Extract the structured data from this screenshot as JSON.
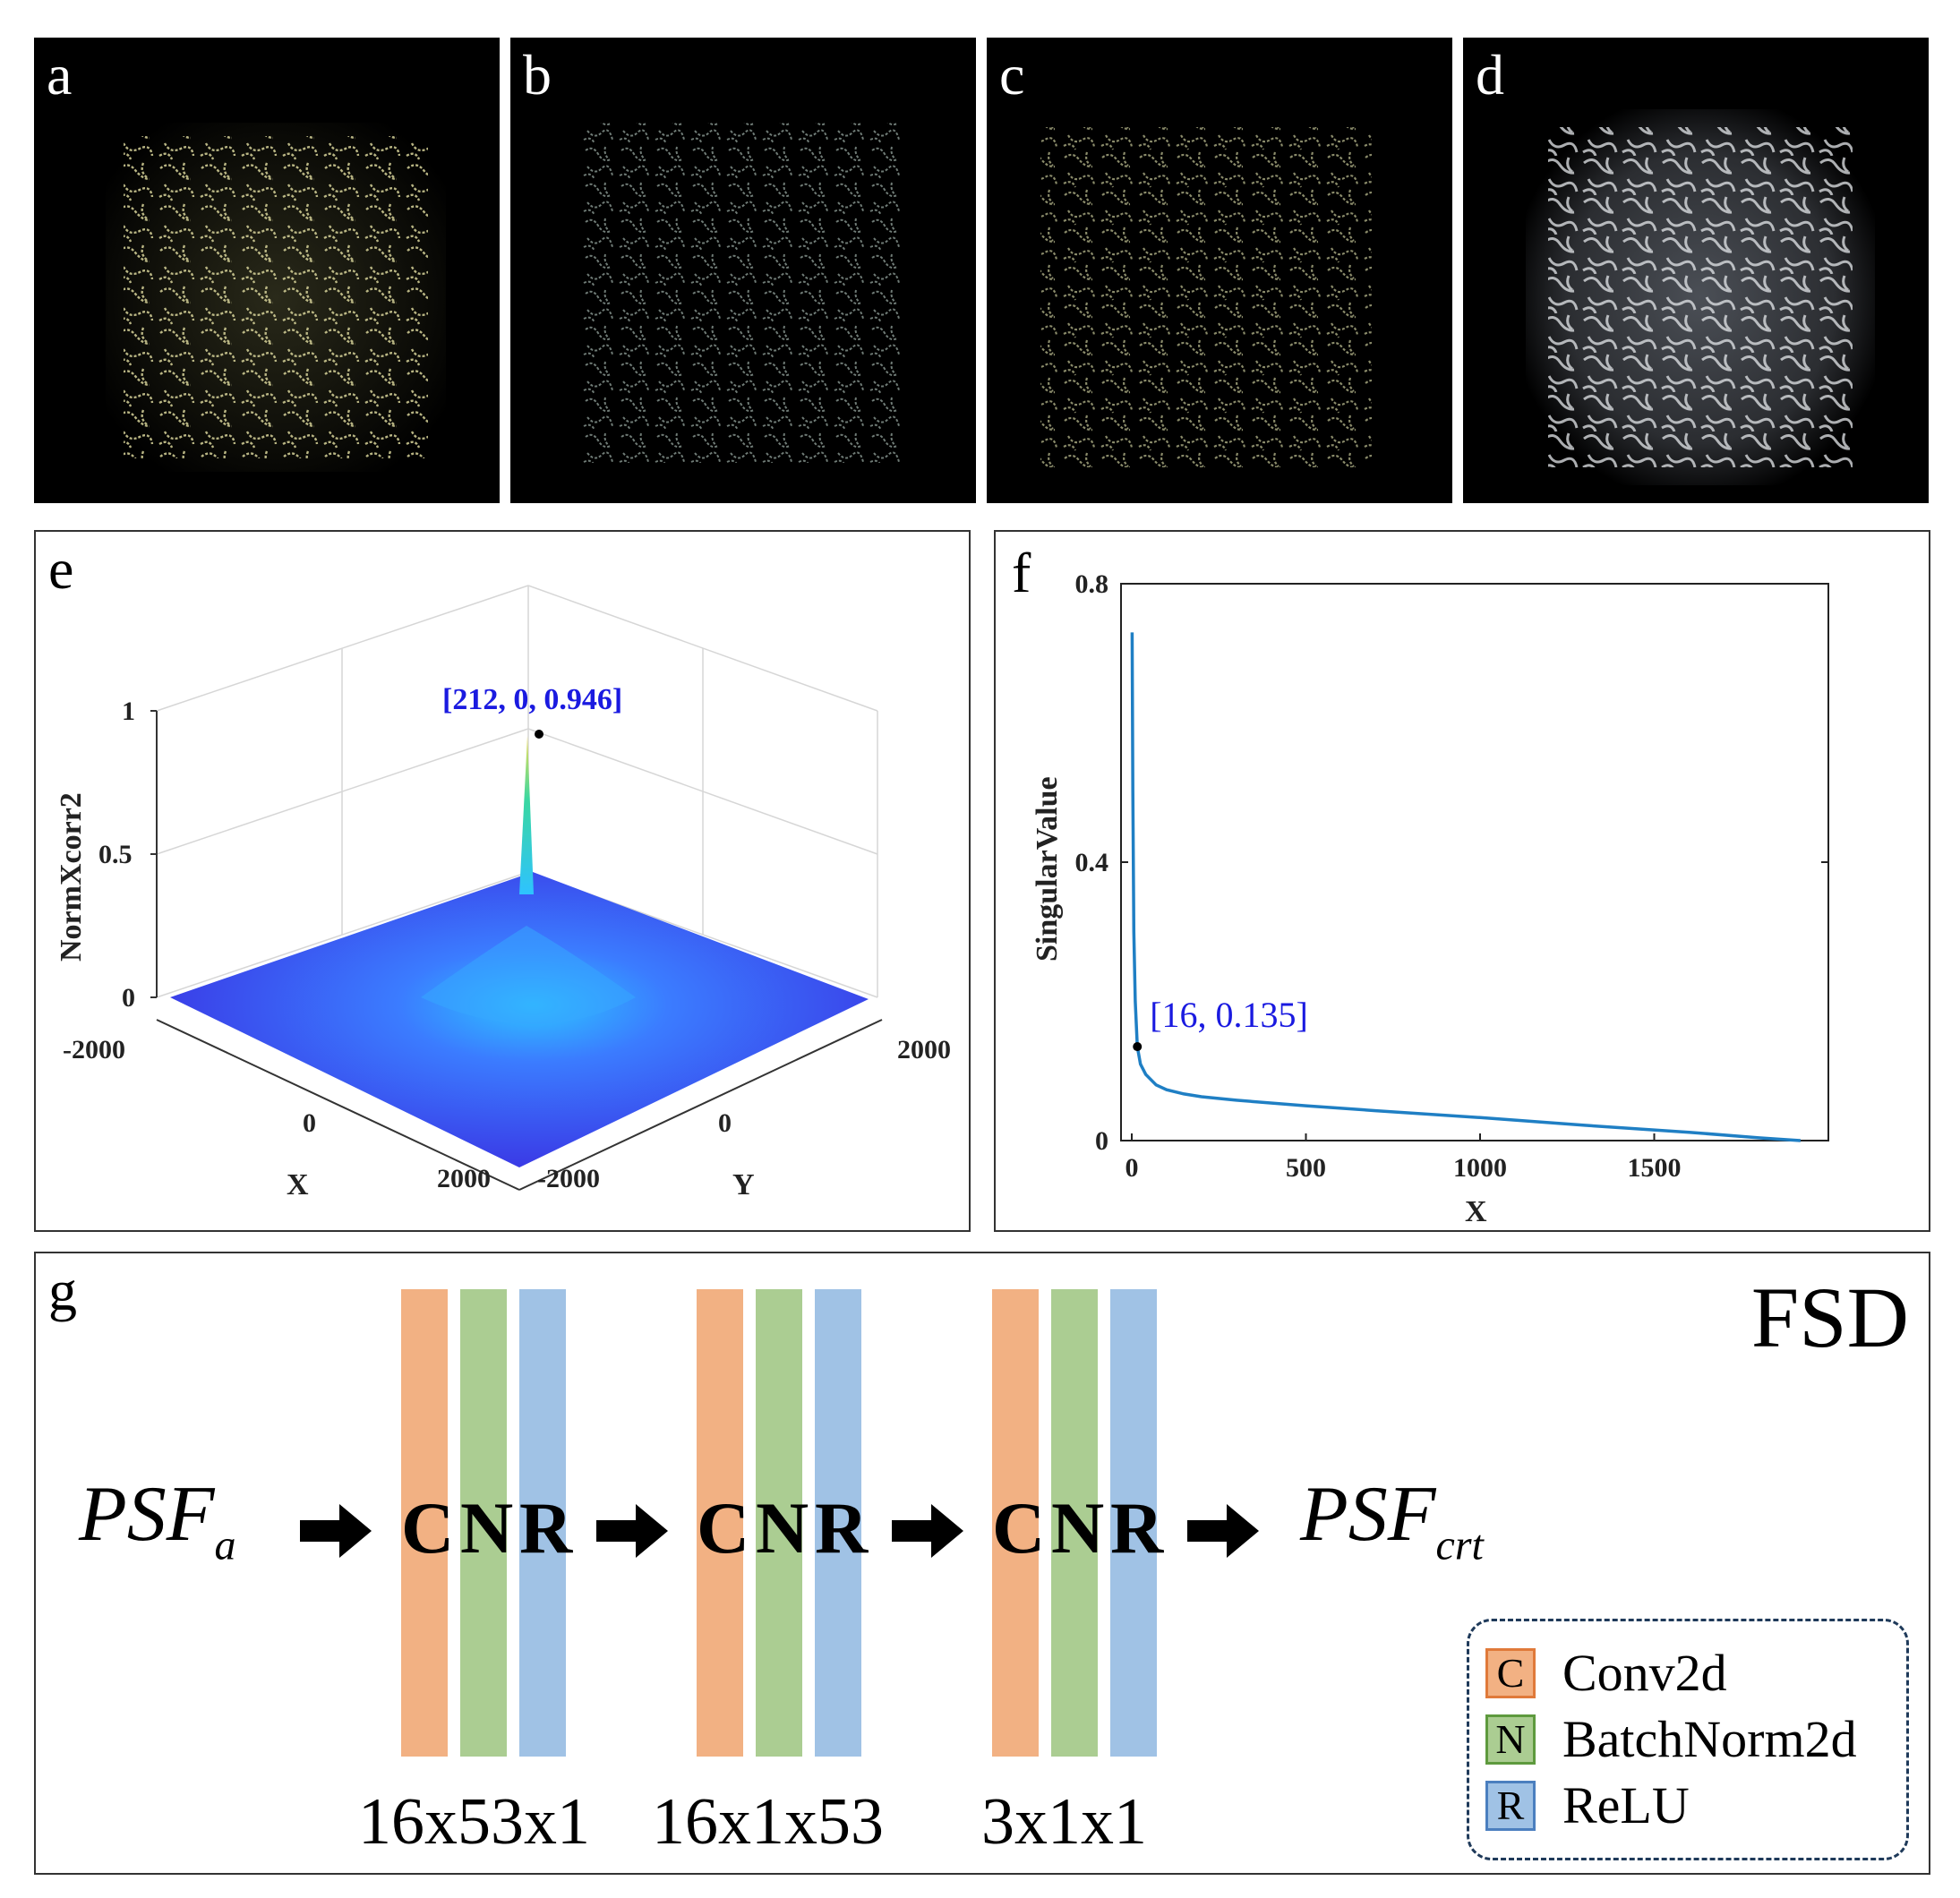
{
  "panels": {
    "a": {
      "label": "a"
    },
    "b": {
      "label": "b"
    },
    "c": {
      "label": "c"
    },
    "d": {
      "label": "d"
    },
    "e": {
      "label": "e"
    },
    "f": {
      "label": "f"
    },
    "g": {
      "label": "g"
    }
  },
  "chart_data": [
    {
      "panel": "e",
      "type": "surface3d",
      "zlabel": "NormXcorr2",
      "xlabel": "X",
      "ylabel": "Y",
      "x_ticks": [
        "-2000",
        "0",
        "2000"
      ],
      "y_ticks": [
        "-2000",
        "0",
        "2000"
      ],
      "z_ticks": [
        "0",
        "0.5",
        "1"
      ],
      "peak": {
        "x": 212,
        "y": 0,
        "z": 0.946
      },
      "peak_label": "[212, 0, 0.946]"
    },
    {
      "panel": "f",
      "type": "line",
      "xlabel": "X",
      "ylabel": "SingularValue",
      "x_ticks": [
        "0",
        "500",
        "1000",
        "1500"
      ],
      "y_ticks": [
        "0",
        "0.4",
        "0.8"
      ],
      "xlim": [
        0,
        2000
      ],
      "ylim": [
        0,
        0.8
      ],
      "series": [
        {
          "x": [
            1,
            3,
            6,
            10,
            16,
            25,
            40,
            70,
            100,
            150,
            200,
            300,
            500,
            700,
            1000,
            1300,
            1600,
            1800,
            1920
          ],
          "y": [
            0.73,
            0.5,
            0.3,
            0.2,
            0.135,
            0.11,
            0.095,
            0.08,
            0.073,
            0.067,
            0.063,
            0.058,
            0.05,
            0.043,
            0.033,
            0.022,
            0.012,
            0.004,
            0.0
          ]
        }
      ],
      "marker": {
        "x": 16,
        "y": 0.135
      },
      "marker_label": "[16, 0.135]"
    }
  ],
  "fsd": {
    "title": "FSD",
    "input": {
      "main": "PSF",
      "sub": "a"
    },
    "output": {
      "main": "PSF",
      "sub": "crt"
    },
    "blocks": [
      {
        "c": "C",
        "n": "N",
        "r": "R",
        "dims": "16x53x1"
      },
      {
        "c": "C",
        "n": "N",
        "r": "R",
        "dims": "16x1x53"
      },
      {
        "c": "C",
        "n": "N",
        "r": "R",
        "dims": "3x1x1"
      }
    ],
    "colors": {
      "conv": "#f2b183",
      "norm": "#abcd92",
      "relu": "#a0c2e5"
    },
    "legend": [
      {
        "key": "C",
        "label": "Conv2d"
      },
      {
        "key": "N",
        "label": "BatchNorm2d"
      },
      {
        "key": "R",
        "label": "ReLU"
      }
    ]
  }
}
